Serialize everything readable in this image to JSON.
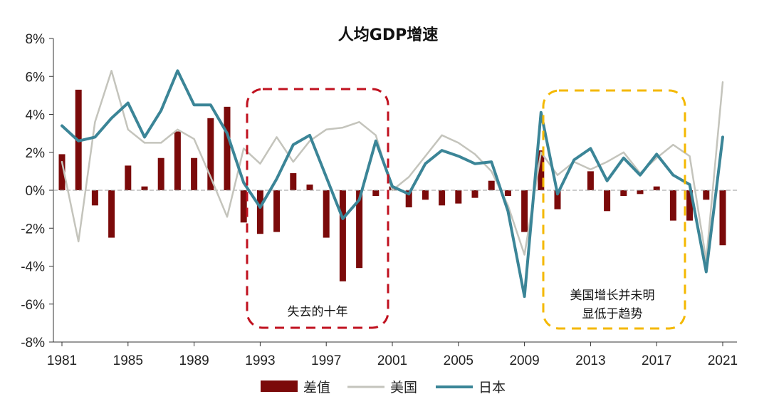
{
  "chart_data": {
    "type": "bar+line",
    "title": "人均GDP增速",
    "x": [
      1981,
      1982,
      1983,
      1984,
      1985,
      1986,
      1987,
      1988,
      1989,
      1990,
      1991,
      1992,
      1993,
      1994,
      1995,
      1996,
      1997,
      1998,
      1999,
      2000,
      2001,
      2002,
      2003,
      2004,
      2005,
      2006,
      2007,
      2008,
      2009,
      2010,
      2011,
      2012,
      2013,
      2014,
      2015,
      2016,
      2017,
      2018,
      2019,
      2020,
      2021
    ],
    "x_tick_labels": [
      "1981",
      "1985",
      "1989",
      "1993",
      "1997",
      "2001",
      "2005",
      "2009",
      "2013",
      "2017",
      "2021"
    ],
    "x_tick_values": [
      1981,
      1985,
      1989,
      1993,
      1997,
      2001,
      2005,
      2009,
      2013,
      2017,
      2021
    ],
    "ylim": [
      -8,
      8
    ],
    "y_ticks": [
      8,
      6,
      4,
      2,
      0,
      -2,
      -4,
      -6,
      -8
    ],
    "y_tick_labels": [
      "8%",
      "6%",
      "4%",
      "2%",
      "0%",
      "-2%",
      "-4%",
      "-6%",
      "-8%"
    ],
    "series": [
      {
        "name": "差值",
        "kind": "bar",
        "color": "#7B0A0A",
        "values": [
          1.9,
          5.3,
          -0.8,
          -2.5,
          1.3,
          0.2,
          1.7,
          3.1,
          1.7,
          3.8,
          4.4,
          -1.7,
          -2.3,
          -2.2,
          0.9,
          0.3,
          -2.5,
          -4.8,
          -4.1,
          -0.3,
          0.2,
          -0.9,
          -0.5,
          -0.8,
          -0.7,
          -0.4,
          0.5,
          -0.3,
          -2.2,
          2.1,
          -1.0,
          0.0,
          1.0,
          -1.1,
          -0.3,
          -0.2,
          0.2,
          -1.6,
          -1.6,
          -0.5,
          -2.9
        ]
      },
      {
        "name": "美国",
        "kind": "line",
        "color": "#C4C4BC",
        "values": [
          1.5,
          -2.7,
          3.6,
          6.3,
          3.2,
          2.5,
          2.5,
          3.2,
          2.7,
          0.7,
          -1.4,
          2.2,
          1.4,
          2.8,
          1.5,
          2.6,
          3.2,
          3.3,
          3.6,
          2.9,
          0.0,
          0.7,
          1.8,
          2.9,
          2.5,
          1.9,
          1.0,
          -0.8,
          -3.4,
          2.0,
          0.8,
          1.5,
          1.1,
          1.5,
          2.0,
          0.9,
          1.7,
          2.4,
          1.8,
          -3.7,
          5.7
        ]
      },
      {
        "name": "日本",
        "kind": "line",
        "color": "#3B8597",
        "values": [
          3.4,
          2.6,
          2.8,
          3.8,
          4.6,
          2.8,
          4.2,
          6.3,
          4.5,
          4.5,
          3.0,
          0.4,
          -0.9,
          0.6,
          2.4,
          2.9,
          0.7,
          -1.5,
          -0.5,
          2.6,
          0.2,
          -0.2,
          1.4,
          2.1,
          1.8,
          1.4,
          1.5,
          -1.1,
          -5.6,
          4.1,
          -0.2,
          1.6,
          2.2,
          0.5,
          1.7,
          0.8,
          1.9,
          0.8,
          0.3,
          -4.3,
          2.8
        ]
      }
    ],
    "annotations": [
      {
        "text": "失去的十年",
        "color": "#C0111F"
      },
      {
        "text_lines": [
          "美国增长并未明",
          "显低于趋势"
        ],
        "color": "#F4B800"
      }
    ],
    "legend": {
      "position": "bottom"
    },
    "grid": false
  }
}
